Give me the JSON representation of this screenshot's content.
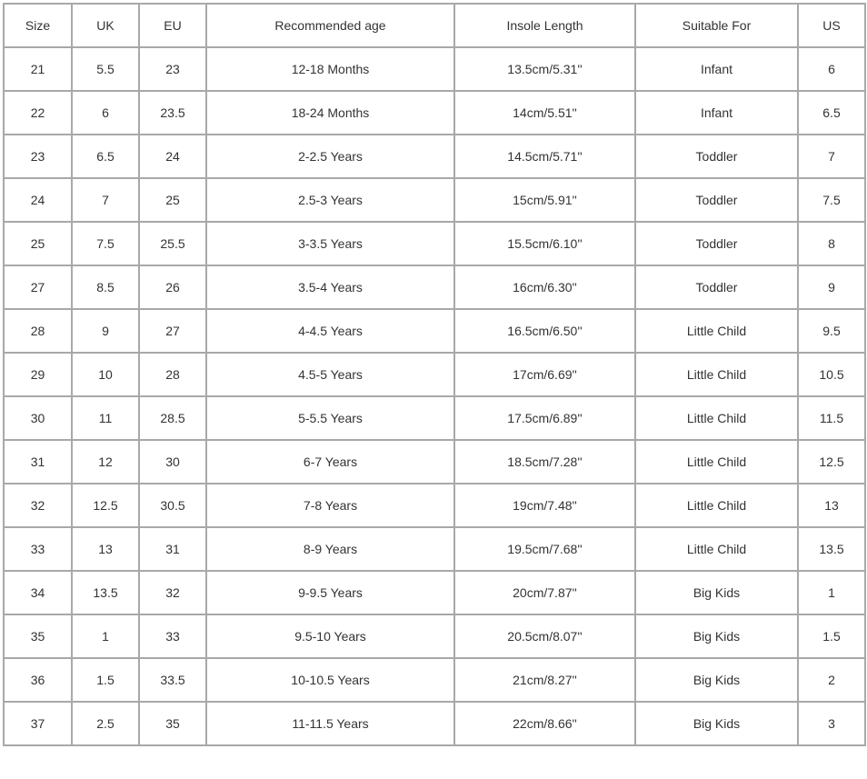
{
  "table": {
    "header": [
      "Size",
      "UK",
      "EU",
      "Recommended age",
      "Insole Length",
      "Suitable For",
      "US"
    ],
    "rows": [
      [
        "21",
        "5.5",
        "23",
        "12-18 Months",
        "13.5cm/5.31''",
        "Infant",
        "6"
      ],
      [
        "22",
        "6",
        "23.5",
        "18-24 Months",
        "14cm/5.51''",
        "Infant",
        "6.5"
      ],
      [
        "23",
        "6.5",
        "24",
        "2-2.5 Years",
        "14.5cm/5.71''",
        "Toddler",
        "7"
      ],
      [
        "24",
        "7",
        "25",
        "2.5-3 Years",
        "15cm/5.91''",
        "Toddler",
        "7.5"
      ],
      [
        "25",
        "7.5",
        "25.5",
        "3-3.5 Years",
        "15.5cm/6.10''",
        "Toddler",
        "8"
      ],
      [
        "27",
        "8.5",
        "26",
        "3.5-4 Years",
        "16cm/6.30''",
        "Toddler",
        "9"
      ],
      [
        "28",
        "9",
        "27",
        "4-4.5 Years",
        "16.5cm/6.50''",
        "Little Child",
        "9.5"
      ],
      [
        "29",
        "10",
        "28",
        "4.5-5 Years",
        "17cm/6.69''",
        "Little Child",
        "10.5"
      ],
      [
        "30",
        "11",
        "28.5",
        "5-5.5 Years",
        "17.5cm/6.89''",
        "Little Child",
        "11.5"
      ],
      [
        "31",
        "12",
        "30",
        "6-7 Years",
        "18.5cm/7.28''",
        "Little Child",
        "12.5"
      ],
      [
        "32",
        "12.5",
        "30.5",
        "7-8 Years",
        "19cm/7.48''",
        "Little Child",
        "13"
      ],
      [
        "33",
        "13",
        "31",
        "8-9 Years",
        "19.5cm/7.68''",
        "Little Child",
        "13.5"
      ],
      [
        "34",
        "13.5",
        "32",
        "9-9.5 Years",
        "20cm/7.87''",
        "Big Kids",
        "1"
      ],
      [
        "35",
        "1",
        "33",
        "9.5-10 Years",
        "20.5cm/8.07''",
        "Big Kids",
        "1.5"
      ],
      [
        "36",
        "1.5",
        "33.5",
        "10-10.5 Years",
        "21cm/8.27''",
        "Big Kids",
        "2"
      ],
      [
        "37",
        "2.5",
        "35",
        "11-11.5 Years",
        "22cm/8.66''",
        "Big Kids",
        "3"
      ]
    ]
  }
}
